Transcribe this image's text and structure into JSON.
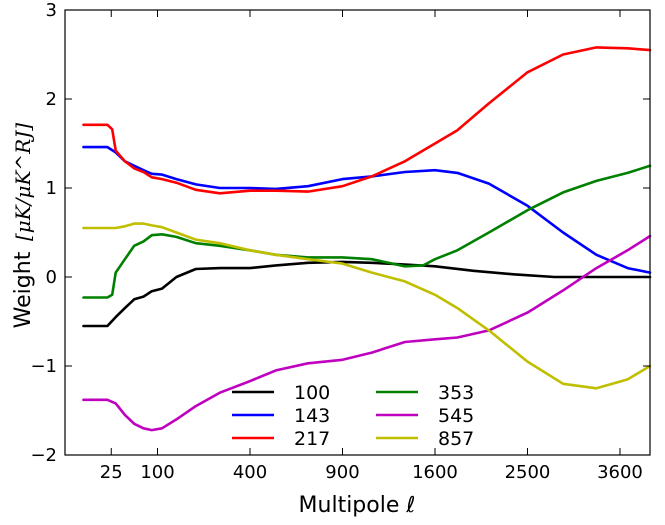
{
  "chart_data": {
    "type": "line",
    "title": "",
    "xlabel": "Multipole ℓ",
    "ylabel": "Weight",
    "ylabel_unit": "[μK/μK^RJ]",
    "x_scale": "sqrt",
    "xlim": [
      0,
      4000
    ],
    "ylim": [
      -2,
      3
    ],
    "x_ticks": [
      {
        "value": 25,
        "label": "25"
      },
      {
        "value": 100,
        "label": "100"
      },
      {
        "value": 400,
        "label": "400"
      },
      {
        "value": 900,
        "label": "900"
      },
      {
        "value": 1600,
        "label": "1600"
      },
      {
        "value": 2500,
        "label": "2500"
      },
      {
        "value": 3600,
        "label": "3600"
      }
    ],
    "y_ticks": [
      {
        "value": -2,
        "label": "−2"
      },
      {
        "value": -1,
        "label": "−1"
      },
      {
        "value": 0,
        "label": "0"
      },
      {
        "value": 1,
        "label": "1"
      },
      {
        "value": 2,
        "label": "2"
      },
      {
        "value": 3,
        "label": "3"
      }
    ],
    "grid": false,
    "legend_placement": "bottom-center",
    "series": [
      {
        "name": "100",
        "color": "#000000",
        "x": [
          4,
          21,
          30,
          42,
          56,
          72,
          88,
          110,
          145,
          200,
          280,
          400,
          520,
          690,
          900,
          1100,
          1350,
          1600,
          1950,
          2350,
          2800,
          3250,
          3700,
          4000
        ],
        "y": [
          -0.55,
          -0.55,
          -0.45,
          -0.35,
          -0.25,
          -0.22,
          -0.16,
          -0.13,
          0.0,
          0.09,
          0.1,
          0.1,
          0.13,
          0.16,
          0.17,
          0.16,
          0.14,
          0.12,
          0.07,
          0.03,
          0.0,
          0.0,
          0.0,
          0.0
        ]
      },
      {
        "name": "143",
        "color": "#0000ff",
        "x": [
          4,
          21,
          30,
          42,
          56,
          72,
          88,
          110,
          145,
          200,
          280,
          400,
          520,
          690,
          900,
          1100,
          1350,
          1600,
          1800,
          2100,
          2500,
          2900,
          3300,
          3700,
          4000
        ],
        "y": [
          1.46,
          1.46,
          1.4,
          1.3,
          1.25,
          1.2,
          1.16,
          1.15,
          1.1,
          1.04,
          1.0,
          1.0,
          0.99,
          1.02,
          1.1,
          1.13,
          1.18,
          1.2,
          1.17,
          1.05,
          0.8,
          0.5,
          0.25,
          0.1,
          0.05
        ]
      },
      {
        "name": "217",
        "color": "#ff0000",
        "x": [
          4,
          21,
          26,
          30,
          42,
          56,
          72,
          88,
          110,
          145,
          200,
          280,
          400,
          520,
          690,
          900,
          1100,
          1350,
          1600,
          1800,
          2100,
          2500,
          2900,
          3300,
          3700,
          4000
        ],
        "y": [
          1.71,
          1.71,
          1.66,
          1.42,
          1.3,
          1.22,
          1.18,
          1.12,
          1.1,
          1.06,
          0.98,
          0.94,
          0.97,
          0.97,
          0.96,
          1.02,
          1.13,
          1.3,
          1.5,
          1.65,
          1.95,
          2.3,
          2.5,
          2.58,
          2.57,
          2.55
        ]
      },
      {
        "name": "353",
        "color": "#008000",
        "x": [
          4,
          21,
          26,
          30,
          42,
          56,
          72,
          88,
          110,
          145,
          200,
          280,
          400,
          520,
          690,
          900,
          1100,
          1350,
          1500,
          1600,
          1800,
          2100,
          2500,
          2900,
          3300,
          3700,
          4000
        ],
        "y": [
          -0.23,
          -0.23,
          -0.2,
          0.05,
          0.2,
          0.35,
          0.4,
          0.47,
          0.48,
          0.45,
          0.38,
          0.35,
          0.3,
          0.25,
          0.22,
          0.22,
          0.2,
          0.12,
          0.13,
          0.2,
          0.3,
          0.5,
          0.75,
          0.95,
          1.08,
          1.17,
          1.25
        ]
      },
      {
        "name": "545",
        "color": "#bf00bf",
        "x": [
          4,
          21,
          30,
          42,
          56,
          72,
          88,
          110,
          145,
          200,
          280,
          400,
          520,
          690,
          900,
          1100,
          1350,
          1600,
          1800,
          2100,
          2500,
          2900,
          3300,
          3700,
          4000
        ],
        "y": [
          -1.38,
          -1.38,
          -1.42,
          -1.55,
          -1.65,
          -1.7,
          -1.72,
          -1.7,
          -1.6,
          -1.45,
          -1.3,
          -1.17,
          -1.05,
          -0.97,
          -0.93,
          -0.85,
          -0.73,
          -0.7,
          -0.68,
          -0.6,
          -0.4,
          -0.15,
          0.1,
          0.3,
          0.46
        ]
      },
      {
        "name": "857",
        "color": "#bfbf00",
        "x": [
          4,
          21,
          30,
          42,
          56,
          72,
          88,
          110,
          145,
          200,
          280,
          400,
          520,
          690,
          900,
          1100,
          1350,
          1600,
          1800,
          2100,
          2500,
          2900,
          3300,
          3700,
          4000
        ],
        "y": [
          0.55,
          0.55,
          0.55,
          0.57,
          0.6,
          0.6,
          0.58,
          0.56,
          0.5,
          0.42,
          0.38,
          0.3,
          0.25,
          0.2,
          0.15,
          0.05,
          -0.05,
          -0.2,
          -0.35,
          -0.6,
          -0.95,
          -1.2,
          -1.25,
          -1.15,
          -1.0
        ]
      }
    ]
  }
}
